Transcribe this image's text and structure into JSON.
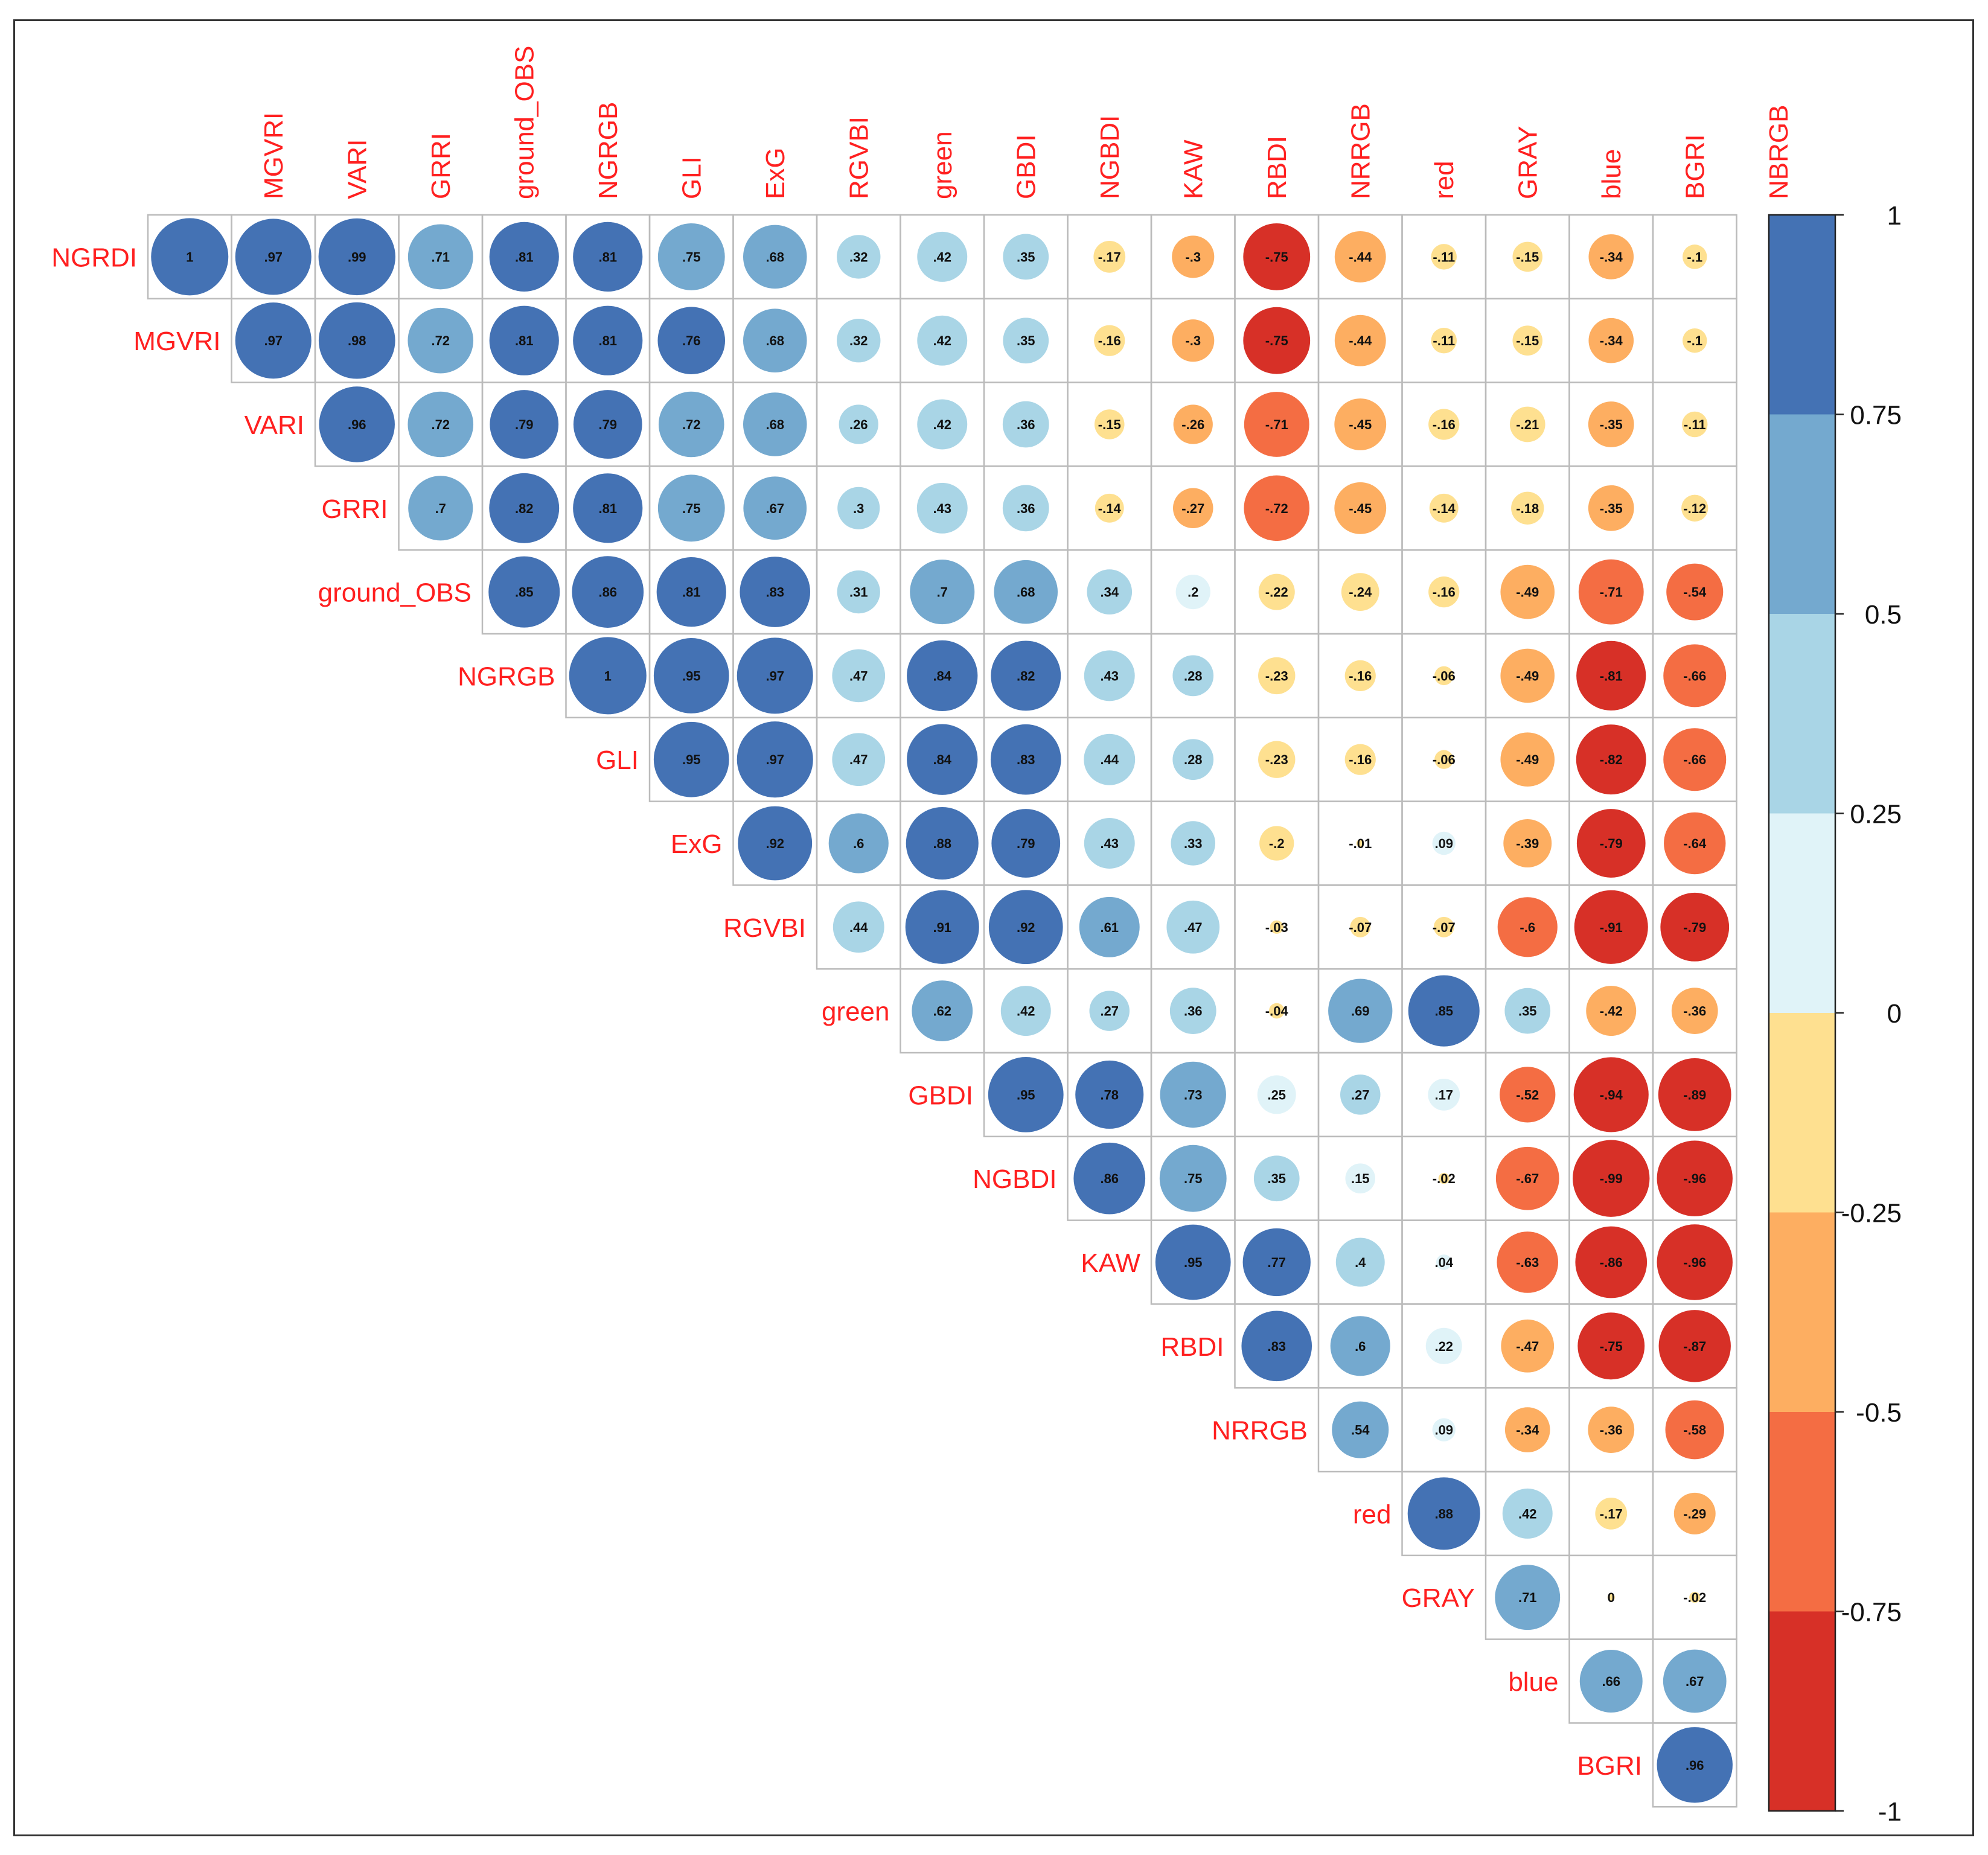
{
  "chart_data": {
    "type": "heatmap",
    "style": "correlation-circles-upper",
    "title": "",
    "variables": [
      "NGRDI",
      "MGVRI",
      "VARI",
      "GRRI",
      "ground_OBS",
      "NGRGB",
      "GLI",
      "ExG",
      "RGVBI",
      "green",
      "GBDI",
      "NGBDI",
      "KAW",
      "RBDI",
      "NRRGB",
      "red",
      "GRAY",
      "blue",
      "BGRI",
      "NBRGB"
    ],
    "column_labels": [
      "MGVRI",
      "VARI",
      "GRRI",
      "ground_OBS",
      "NGRGB",
      "GLI",
      "ExG",
      "RGVBI",
      "green",
      "GBDI",
      "NGBDI",
      "KAW",
      "RBDI",
      "NRRGB",
      "red",
      "GRAY",
      "blue",
      "BGRI",
      "NBRGB"
    ],
    "row_labels": [
      "NGRDI",
      "MGVRI",
      "VARI",
      "GRRI",
      "ground_OBS",
      "NGRGB",
      "GLI",
      "ExG",
      "RGVBI",
      "green",
      "GBDI",
      "NGBDI",
      "KAW",
      "RBDI",
      "NRRGB",
      "red",
      "GRAY",
      "blue",
      "BGRI"
    ],
    "matrix": [
      [
        1,
        0.97,
        0.99,
        0.71,
        0.81,
        0.81,
        0.75,
        0.68,
        0.32,
        0.42,
        0.35,
        -0.17,
        -0.3,
        -0.75,
        -0.44,
        -0.11,
        -0.15,
        -0.34,
        -0.1
      ],
      [
        0.97,
        0.98,
        0.72,
        0.81,
        0.81,
        0.76,
        0.68,
        0.32,
        0.42,
        0.35,
        -0.16,
        -0.3,
        -0.75,
        -0.44,
        -0.11,
        -0.15,
        -0.34,
        -0.1
      ],
      [
        0.96,
        0.72,
        0.79,
        0.79,
        0.72,
        0.68,
        0.26,
        0.42,
        0.36,
        -0.15,
        -0.26,
        -0.71,
        -0.45,
        -0.16,
        -0.21,
        -0.35,
        -0.11
      ],
      [
        0.7,
        0.82,
        0.81,
        0.75,
        0.67,
        0.3,
        0.43,
        0.36,
        -0.14,
        -0.27,
        -0.72,
        -0.45,
        -0.14,
        -0.18,
        -0.35,
        -0.12
      ],
      [
        0.85,
        0.86,
        0.81,
        0.83,
        0.31,
        0.7,
        0.68,
        0.34,
        0.2,
        -0.22,
        -0.24,
        -0.16,
        -0.49,
        -0.71,
        -0.54
      ],
      [
        1,
        0.95,
        0.97,
        0.47,
        0.84,
        0.82,
        0.43,
        0.28,
        -0.23,
        -0.16,
        -0.06,
        -0.49,
        -0.81,
        -0.66
      ],
      [
        0.95,
        0.97,
        0.47,
        0.84,
        0.83,
        0.44,
        0.28,
        -0.23,
        -0.16,
        -0.06,
        -0.49,
        -0.82,
        -0.66
      ],
      [
        0.92,
        0.6,
        0.88,
        0.79,
        0.43,
        0.33,
        -0.2,
        -0.01,
        0.09,
        -0.39,
        -0.79,
        -0.64
      ],
      [
        0.44,
        0.91,
        0.92,
        0.61,
        0.47,
        -0.03,
        -0.07,
        -0.07,
        -0.6,
        -0.91,
        -0.79
      ],
      [
        0.62,
        0.42,
        0.27,
        0.36,
        -0.04,
        0.69,
        0.85,
        0.35,
        -0.42,
        -0.36
      ],
      [
        0.95,
        0.78,
        0.73,
        0.25,
        0.27,
        0.17,
        -0.52,
        -0.94,
        -0.89
      ],
      [
        0.86,
        0.75,
        0.35,
        0.15,
        -0.02,
        -0.67,
        -0.99,
        -0.96
      ],
      [
        0.95,
        0.77,
        0.4,
        0.04,
        -0.63,
        -0.86,
        -0.96
      ],
      [
        0.83,
        0.6,
        0.22,
        -0.47,
        -0.75,
        -0.87
      ],
      [
        0.54,
        0.09,
        -0.34,
        -0.36,
        -0.58
      ],
      [
        0.88,
        0.42,
        -0.17,
        -0.29
      ],
      [
        0.71,
        0,
        -0.02
      ],
      [
        0.66,
        0.67
      ],
      [
        0.96
      ]
    ],
    "color_scale": {
      "range": [
        -1,
        1
      ],
      "ticks": [
        "1",
        "0.75",
        "0.5",
        "0.25",
        "0",
        "-0.25",
        "-0.5",
        "-0.75",
        "-1"
      ],
      "bins": [
        {
          "from": 0.75,
          "to": 1,
          "color": "#4472b4"
        },
        {
          "from": 0.5,
          "to": 0.75,
          "color": "#74a9cf"
        },
        {
          "from": 0.25,
          "to": 0.5,
          "color": "#a9d5e6"
        },
        {
          "from": 0,
          "to": 0.25,
          "color": "#e0f3f8"
        },
        {
          "from": -0.25,
          "to": 0,
          "color": "#fee090"
        },
        {
          "from": -0.5,
          "to": -0.25,
          "color": "#fdae61"
        },
        {
          "from": -0.75,
          "to": -0.5,
          "color": "#f46d43"
        },
        {
          "from": -1,
          "to": -0.75,
          "color": "#d73027"
        }
      ]
    },
    "label_color": "#ff2020",
    "grid_color": "#bbbbbb",
    "legend_position": "right"
  }
}
